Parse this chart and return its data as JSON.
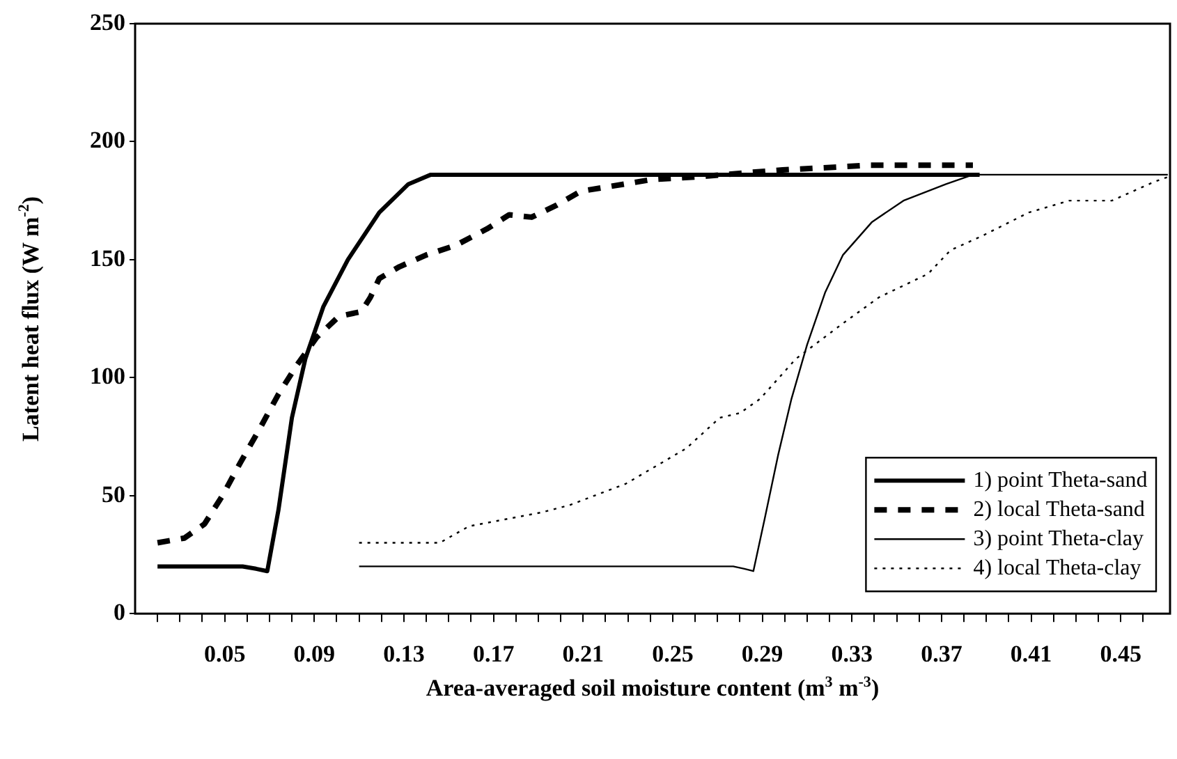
{
  "chart_data": {
    "type": "line",
    "xlabel": "Area-averaged soil moisture content (m$^{3}$ m$^{-3}$)",
    "ylabel": "Latent heat flux (W m$^{-2}$)",
    "xlim": [
      0.01,
      0.472
    ],
    "xticks": [
      {
        "value": 0.02,
        "label": null
      },
      {
        "value": 0.03,
        "label": null
      },
      {
        "value": 0.04,
        "label": null
      },
      0.05,
      {
        "value": 0.06,
        "label": null
      },
      {
        "value": 0.07,
        "label": null
      },
      {
        "value": 0.08,
        "label": null
      },
      0.09,
      {
        "value": 0.1,
        "label": null
      },
      {
        "value": 0.11,
        "label": null
      },
      {
        "value": 0.12,
        "label": null
      },
      0.13,
      {
        "value": 0.14,
        "label": null
      },
      {
        "value": 0.15,
        "label": null
      },
      {
        "value": 0.16,
        "label": null
      },
      0.17,
      {
        "value": 0.18,
        "label": null
      },
      {
        "value": 0.19,
        "label": null
      },
      {
        "value": 0.2,
        "label": null
      },
      0.21,
      {
        "value": 0.22,
        "label": null
      },
      {
        "value": 0.23,
        "label": null
      },
      {
        "value": 0.24,
        "label": null
      },
      0.25,
      {
        "value": 0.26,
        "label": null
      },
      {
        "value": 0.27,
        "label": null
      },
      {
        "value": 0.28,
        "label": null
      },
      0.29,
      {
        "value": 0.3,
        "label": null
      },
      {
        "value": 0.31,
        "label": null
      },
      {
        "value": 0.32,
        "label": null
      },
      0.33,
      {
        "value": 0.34,
        "label": null
      },
      {
        "value": 0.35,
        "label": null
      },
      {
        "value": 0.36,
        "label": null
      },
      0.37,
      {
        "value": 0.38,
        "label": null
      },
      {
        "value": 0.39,
        "label": null
      },
      {
        "value": 0.4,
        "label": null
      },
      0.41,
      {
        "value": 0.42,
        "label": null
      },
      {
        "value": 0.43,
        "label": null
      },
      {
        "value": 0.44,
        "label": null
      },
      0.45,
      {
        "value": 0.46,
        "label": null
      }
    ],
    "ylim": [
      0,
      250
    ],
    "yticks": [
      0,
      50,
      100,
      150,
      200,
      250
    ],
    "grid": false,
    "legend": "bottom right",
    "marker": "none",
    "series": [
      {
        "name": "1) point Theta-sand",
        "color": "#000000",
        "line_style": "solid",
        "x": [
          0.02,
          0.058,
          0.064,
          0.069,
          0.074,
          0.08,
          0.086,
          0.094,
          0.105,
          0.119,
          0.132,
          0.142,
          0.387
        ],
        "values": [
          20,
          20,
          19,
          18,
          44,
          83,
          108,
          130,
          150,
          170,
          182,
          186,
          186
        ]
      },
      {
        "name": "2) local Theta-sand",
        "color": "#000000",
        "line_style": "dashed",
        "x": [
          0.02,
          0.032,
          0.041,
          0.049,
          0.057,
          0.066,
          0.074,
          0.082,
          0.091,
          0.101,
          0.111,
          0.115,
          0.119,
          0.128,
          0.14,
          0.153,
          0.167,
          0.177,
          0.187,
          0.198,
          0.209,
          0.241,
          0.26,
          0.285,
          0.299,
          0.338,
          0.384
        ],
        "values": [
          30,
          32,
          38,
          50,
          64,
          79,
          93,
          105,
          117,
          126,
          128,
          134,
          142,
          147,
          152,
          156,
          163,
          169,
          168,
          173,
          179,
          184,
          185,
          187,
          188,
          190,
          190
        ]
      },
      {
        "name": "3) point Theta-clay",
        "color": "#000000",
        "line_style": "solid",
        "x": [
          0.11,
          0.277,
          0.282,
          0.286,
          0.291,
          0.297,
          0.303,
          0.31,
          0.318,
          0.326,
          0.339,
          0.353,
          0.372,
          0.384,
          0.471
        ],
        "values": [
          20,
          20,
          19,
          18,
          40,
          67,
          91,
          114,
          136,
          152,
          166,
          175,
          182,
          186,
          186
        ]
      },
      {
        "name": "4) local Theta-clay",
        "color": "#000000",
        "line_style": "dotted",
        "x": [
          0.11,
          0.146,
          0.159,
          0.192,
          0.204,
          0.229,
          0.256,
          0.271,
          0.28,
          0.289,
          0.305,
          0.326,
          0.342,
          0.364,
          0.374,
          0.388,
          0.409,
          0.427,
          0.446,
          0.465,
          0.471
        ],
        "values": [
          30,
          30,
          37,
          43,
          46,
          55,
          70,
          83,
          85,
          91,
          108,
          123,
          134,
          144,
          154,
          160,
          170,
          175,
          175,
          183,
          185
        ]
      }
    ]
  }
}
